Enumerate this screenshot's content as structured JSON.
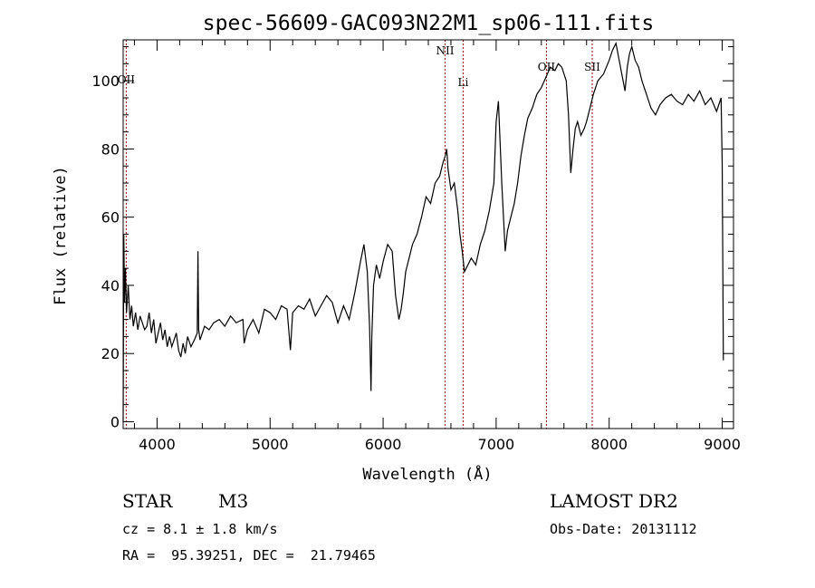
{
  "chart_data": {
    "type": "line",
    "title": "spec-56609-GAC093N22M1_sp06-111.fits",
    "xlabel": "Wavelength (Å)",
    "ylabel": "Flux (relative)",
    "xlim": [
      3700,
      9100
    ],
    "ylim": [
      -2,
      112
    ],
    "xticks": [
      4000,
      5000,
      6000,
      7000,
      8000,
      9000
    ],
    "yticks": [
      0,
      20,
      40,
      60,
      80,
      100
    ],
    "grid": false,
    "series": [
      {
        "x": [
          3700,
          3706,
          3712,
          3720,
          3730,
          3745,
          3760,
          3775,
          3790,
          3810,
          3830,
          3850,
          3870,
          3890,
          3910,
          3930,
          3950,
          3970,
          3990,
          4010,
          4030,
          4050,
          4070,
          4090,
          4110,
          4130,
          4150,
          4170,
          4190,
          4210,
          4230,
          4250,
          4270,
          4300,
          4330,
          4355,
          4362,
          4368,
          4380,
          4420,
          4460,
          4500,
          4550,
          4600,
          4650,
          4700,
          4760,
          4770,
          4800,
          4850,
          4900,
          4950,
          5000,
          5050,
          5100,
          5150,
          5180,
          5200,
          5250,
          5300,
          5350,
          5400,
          5450,
          5500,
          5550,
          5600,
          5650,
          5700,
          5750,
          5800,
          5830,
          5860,
          5880,
          5893,
          5900,
          5915,
          5940,
          5970,
          6000,
          6040,
          6080,
          6110,
          6140,
          6160,
          6180,
          6200,
          6230,
          6260,
          6300,
          6340,
          6380,
          6420,
          6460,
          6500,
          6530,
          6550,
          6563,
          6575,
          6600,
          6630,
          6660,
          6680,
          6700,
          6720,
          6750,
          6780,
          6820,
          6860,
          6900,
          6940,
          6980,
          7000,
          7020,
          7050,
          7080,
          7100,
          7130,
          7160,
          7190,
          7220,
          7250,
          7280,
          7320,
          7360,
          7400,
          7440,
          7480,
          7520,
          7550,
          7580,
          7600,
          7620,
          7640,
          7660,
          7680,
          7700,
          7720,
          7750,
          7780,
          7800,
          7830,
          7860,
          7900,
          7950,
          8000,
          8030,
          8060,
          8100,
          8140,
          8160,
          8180,
          8200,
          8230,
          8260,
          8290,
          8330,
          8370,
          8410,
          8450,
          8500,
          8550,
          8600,
          8650,
          8700,
          8750,
          8800,
          8850,
          8900,
          8950,
          8990,
          9000,
          9005,
          9010
        ],
        "y": [
          0,
          55,
          35,
          45,
          32,
          40,
          30,
          34,
          28,
          32,
          27,
          31,
          29,
          27,
          28,
          32,
          26,
          30,
          23,
          26,
          29,
          24,
          27,
          22,
          25,
          22,
          24,
          26,
          21,
          19,
          23,
          20,
          25,
          22,
          24,
          26,
          50,
          27,
          24,
          28,
          27,
          29,
          30,
          28,
          31,
          29,
          30,
          23,
          27,
          30,
          26,
          33,
          32,
          30,
          34,
          33,
          21,
          32,
          34,
          33,
          36,
          31,
          34,
          37,
          35,
          29,
          34,
          30,
          38,
          47,
          52,
          44,
          28,
          9,
          25,
          40,
          46,
          42,
          47,
          52,
          50,
          37,
          30,
          33,
          38,
          44,
          48,
          52,
          55,
          60,
          66,
          64,
          70,
          72,
          76,
          78,
          80,
          74,
          68,
          70,
          62,
          55,
          50,
          44,
          46,
          48,
          46,
          52,
          56,
          62,
          70,
          88,
          94,
          70,
          50,
          56,
          60,
          64,
          70,
          78,
          84,
          89,
          92,
          96,
          98,
          101,
          104,
          103,
          105,
          104,
          102,
          100,
          90,
          73,
          80,
          86,
          88,
          84,
          86,
          88,
          92,
          96,
          100,
          102,
          106,
          109,
          111,
          104,
          97,
          104,
          108,
          110,
          106,
          104,
          100,
          96,
          92,
          90,
          93,
          95,
          96,
          94,
          93,
          96,
          94,
          97,
          93,
          95,
          91,
          95,
          76,
          50,
          18
        ]
      }
    ],
    "annotations": [
      {
        "label": "OII",
        "x": 3727
      },
      {
        "label": "NII",
        "x": 6548
      },
      {
        "label": "Li",
        "x": 6708
      },
      {
        "label": "OII",
        "x": 7445
      },
      {
        "label": "SII",
        "x": 7850
      }
    ]
  },
  "info": {
    "object_class": "STAR",
    "subclass": "M3",
    "survey": "LAMOST DR2",
    "cz": "cz = 8.1 ± 1.8 km/s",
    "obs_date": "Obs-Date: 20131112",
    "coords": "RA =  95.39251, DEC =  21.79465"
  }
}
